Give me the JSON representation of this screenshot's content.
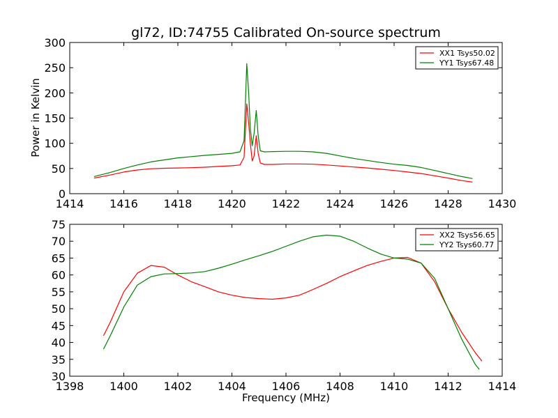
{
  "chart_data": [
    {
      "type": "line",
      "title": "gl72, ID:74755 Calibrated On-source spectrum",
      "xlabel": "",
      "ylabel": "Power in Kelvin",
      "xlim": [
        1414,
        1430
      ],
      "ylim": [
        0,
        300
      ],
      "xticks": [
        1414,
        1416,
        1418,
        1420,
        1422,
        1424,
        1426,
        1428,
        1430
      ],
      "yticks": [
        0,
        50,
        100,
        150,
        200,
        250,
        300
      ],
      "legend": "top-right",
      "grid": false,
      "series": [
        {
          "name": "XX1 Tsys50.02",
          "color": "#ff0000",
          "x": [
            1414.9,
            1415.5,
            1416.0,
            1416.5,
            1417.0,
            1417.5,
            1418.0,
            1418.5,
            1419.0,
            1419.5,
            1420.0,
            1420.3,
            1420.45,
            1420.55,
            1420.62,
            1420.68,
            1420.75,
            1420.82,
            1420.9,
            1420.97,
            1421.05,
            1421.2,
            1421.5,
            1422.0,
            1422.5,
            1423.0,
            1423.5,
            1424.0,
            1424.5,
            1425.0,
            1425.5,
            1426.0,
            1426.5,
            1427.0,
            1427.5,
            1428.0,
            1428.5,
            1428.9
          ],
          "y": [
            31,
            37,
            43,
            47,
            49.5,
            50.5,
            51,
            51.5,
            52.5,
            54,
            55.5,
            57,
            72,
            178,
            140,
            100,
            65,
            75,
            115,
            80,
            61,
            58,
            58,
            59,
            59,
            58.5,
            57,
            55,
            53,
            51,
            48.5,
            46,
            43,
            40,
            35.5,
            31,
            26,
            23
          ]
        },
        {
          "name": "YY1 Tsys67.48",
          "color": "#008000",
          "x": [
            1414.9,
            1415.5,
            1416.0,
            1416.5,
            1417.0,
            1417.5,
            1418.0,
            1418.5,
            1419.0,
            1419.5,
            1420.0,
            1420.3,
            1420.45,
            1420.55,
            1420.62,
            1420.68,
            1420.75,
            1420.82,
            1420.9,
            1420.97,
            1421.05,
            1421.2,
            1421.5,
            1422.0,
            1422.5,
            1423.0,
            1423.5,
            1424.0,
            1424.5,
            1425.0,
            1425.5,
            1426.0,
            1426.5,
            1427.0,
            1427.5,
            1428.0,
            1428.5,
            1428.9
          ],
          "y": [
            34,
            42,
            50,
            57,
            63,
            67,
            71,
            73.5,
            76,
            78,
            80,
            83,
            105,
            258,
            200,
            130,
            95,
            120,
            165,
            115,
            85,
            83,
            83.5,
            84,
            84,
            83,
            80,
            75,
            70,
            66,
            62,
            58.5,
            56,
            52,
            46,
            40,
            34,
            30
          ]
        }
      ]
    },
    {
      "type": "line",
      "title": "",
      "xlabel": "Frequency (MHz)",
      "ylabel": "",
      "xlim": [
        1398,
        1414
      ],
      "ylim": [
        30,
        75
      ],
      "xticks": [
        1398,
        1400,
        1402,
        1404,
        1406,
        1408,
        1410,
        1412,
        1414
      ],
      "yticks": [
        30,
        35,
        40,
        45,
        50,
        55,
        60,
        65,
        70,
        75
      ],
      "legend": "top-right",
      "grid": false,
      "series": [
        {
          "name": "XX2 Tsys56.65",
          "color": "#ff0000",
          "x": [
            1399.25,
            1399.5,
            1400.0,
            1400.5,
            1401.0,
            1401.5,
            1402.0,
            1402.5,
            1403.0,
            1403.5,
            1404.0,
            1404.5,
            1405.0,
            1405.5,
            1406.0,
            1406.5,
            1407.0,
            1407.5,
            1408.0,
            1408.5,
            1409.0,
            1409.5,
            1410.0,
            1410.5,
            1411.0,
            1411.5,
            1412.0,
            1412.5,
            1413.0,
            1413.25
          ],
          "y": [
            42,
            46,
            55,
            60.5,
            62.8,
            62.3,
            60,
            58,
            56.5,
            55,
            54,
            53.3,
            53,
            52.8,
            53.2,
            54,
            55.7,
            57.5,
            59.5,
            61.2,
            62.8,
            64,
            65,
            65.2,
            63.5,
            58,
            50,
            43,
            37,
            34.5
          ]
        },
        {
          "name": "YY2 Tsys60.77",
          "color": "#008000",
          "x": [
            1399.25,
            1399.5,
            1400.0,
            1400.5,
            1401.0,
            1401.5,
            1402.0,
            1402.5,
            1403.0,
            1403.5,
            1404.0,
            1404.5,
            1405.0,
            1405.5,
            1406.0,
            1406.5,
            1407.0,
            1407.5,
            1408.0,
            1408.5,
            1409.0,
            1409.5,
            1410.0,
            1410.5,
            1411.0,
            1411.5,
            1412.0,
            1412.5,
            1413.0,
            1413.15
          ],
          "y": [
            38,
            42,
            50.5,
            57,
            59.5,
            60.3,
            60.4,
            60.6,
            61,
            62,
            63.2,
            64.5,
            65.7,
            67,
            68.5,
            70,
            71.3,
            71.8,
            71.5,
            70,
            68,
            66.2,
            65,
            64.7,
            63.5,
            59,
            50,
            41,
            33.5,
            32
          ]
        }
      ]
    }
  ]
}
